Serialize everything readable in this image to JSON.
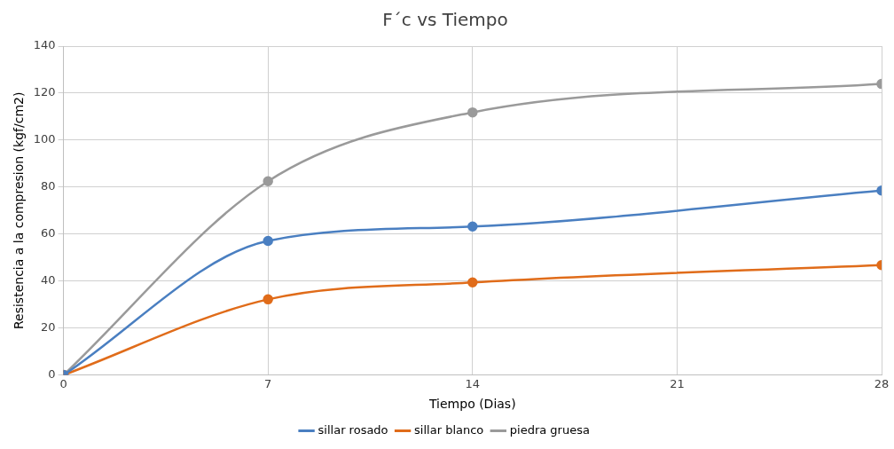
{
  "chart_data": {
    "type": "line",
    "title": "F´c vs Tiempo",
    "xlabel": "Tiempo (Dias)",
    "ylabel": "Resistencia a la compresion (kgf/cm2)",
    "x": [
      0,
      7,
      14,
      28
    ],
    "series": [
      {
        "name": "sillar rosado",
        "color": "#4a7fc1",
        "values": [
          0,
          57.1,
          63.2,
          78.5
        ]
      },
      {
        "name": "sillar blanco",
        "color": "#e06c1a",
        "values": [
          0,
          32.2,
          39.4,
          46.8
        ]
      },
      {
        "name": "piedra gruesa",
        "color": "#9a9a9a",
        "values": [
          0,
          82.5,
          111.8,
          123.9
        ]
      }
    ],
    "xlim": [
      0,
      28
    ],
    "xticks": [
      0,
      7,
      14,
      21,
      28
    ],
    "ylim": [
      0,
      140
    ],
    "yticks": [
      0,
      20,
      40,
      60,
      80,
      100,
      120,
      140
    ],
    "grid": true,
    "legend": "bottom",
    "marker": "circle",
    "line_style": "solid"
  }
}
